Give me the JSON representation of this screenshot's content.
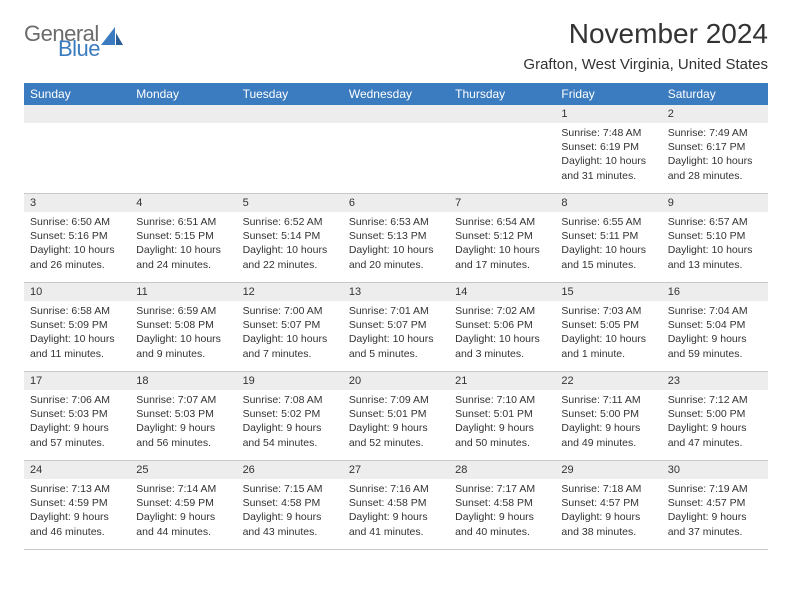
{
  "logo": {
    "text1": "General",
    "text2": "Blue"
  },
  "title": "November 2024",
  "location": "Grafton, West Virginia, United States",
  "header_color": "#3b7bbf",
  "daybar_color": "#ededed",
  "border_color": "#c8c8c8",
  "weekdays": [
    "Sunday",
    "Monday",
    "Tuesday",
    "Wednesday",
    "Thursday",
    "Friday",
    "Saturday"
  ],
  "weeks": [
    [
      null,
      null,
      null,
      null,
      null,
      {
        "n": "1",
        "sr": "7:48 AM",
        "ss": "6:19 PM",
        "dl": "10 hours and 31 minutes."
      },
      {
        "n": "2",
        "sr": "7:49 AM",
        "ss": "6:17 PM",
        "dl": "10 hours and 28 minutes."
      }
    ],
    [
      {
        "n": "3",
        "sr": "6:50 AM",
        "ss": "5:16 PM",
        "dl": "10 hours and 26 minutes."
      },
      {
        "n": "4",
        "sr": "6:51 AM",
        "ss": "5:15 PM",
        "dl": "10 hours and 24 minutes."
      },
      {
        "n": "5",
        "sr": "6:52 AM",
        "ss": "5:14 PM",
        "dl": "10 hours and 22 minutes."
      },
      {
        "n": "6",
        "sr": "6:53 AM",
        "ss": "5:13 PM",
        "dl": "10 hours and 20 minutes."
      },
      {
        "n": "7",
        "sr": "6:54 AM",
        "ss": "5:12 PM",
        "dl": "10 hours and 17 minutes."
      },
      {
        "n": "8",
        "sr": "6:55 AM",
        "ss": "5:11 PM",
        "dl": "10 hours and 15 minutes."
      },
      {
        "n": "9",
        "sr": "6:57 AM",
        "ss": "5:10 PM",
        "dl": "10 hours and 13 minutes."
      }
    ],
    [
      {
        "n": "10",
        "sr": "6:58 AM",
        "ss": "5:09 PM",
        "dl": "10 hours and 11 minutes."
      },
      {
        "n": "11",
        "sr": "6:59 AM",
        "ss": "5:08 PM",
        "dl": "10 hours and 9 minutes."
      },
      {
        "n": "12",
        "sr": "7:00 AM",
        "ss": "5:07 PM",
        "dl": "10 hours and 7 minutes."
      },
      {
        "n": "13",
        "sr": "7:01 AM",
        "ss": "5:07 PM",
        "dl": "10 hours and 5 minutes."
      },
      {
        "n": "14",
        "sr": "7:02 AM",
        "ss": "5:06 PM",
        "dl": "10 hours and 3 minutes."
      },
      {
        "n": "15",
        "sr": "7:03 AM",
        "ss": "5:05 PM",
        "dl": "10 hours and 1 minute."
      },
      {
        "n": "16",
        "sr": "7:04 AM",
        "ss": "5:04 PM",
        "dl": "9 hours and 59 minutes."
      }
    ],
    [
      {
        "n": "17",
        "sr": "7:06 AM",
        "ss": "5:03 PM",
        "dl": "9 hours and 57 minutes."
      },
      {
        "n": "18",
        "sr": "7:07 AM",
        "ss": "5:03 PM",
        "dl": "9 hours and 56 minutes."
      },
      {
        "n": "19",
        "sr": "7:08 AM",
        "ss": "5:02 PM",
        "dl": "9 hours and 54 minutes."
      },
      {
        "n": "20",
        "sr": "7:09 AM",
        "ss": "5:01 PM",
        "dl": "9 hours and 52 minutes."
      },
      {
        "n": "21",
        "sr": "7:10 AM",
        "ss": "5:01 PM",
        "dl": "9 hours and 50 minutes."
      },
      {
        "n": "22",
        "sr": "7:11 AM",
        "ss": "5:00 PM",
        "dl": "9 hours and 49 minutes."
      },
      {
        "n": "23",
        "sr": "7:12 AM",
        "ss": "5:00 PM",
        "dl": "9 hours and 47 minutes."
      }
    ],
    [
      {
        "n": "24",
        "sr": "7:13 AM",
        "ss": "4:59 PM",
        "dl": "9 hours and 46 minutes."
      },
      {
        "n": "25",
        "sr": "7:14 AM",
        "ss": "4:59 PM",
        "dl": "9 hours and 44 minutes."
      },
      {
        "n": "26",
        "sr": "7:15 AM",
        "ss": "4:58 PM",
        "dl": "9 hours and 43 minutes."
      },
      {
        "n": "27",
        "sr": "7:16 AM",
        "ss": "4:58 PM",
        "dl": "9 hours and 41 minutes."
      },
      {
        "n": "28",
        "sr": "7:17 AM",
        "ss": "4:58 PM",
        "dl": "9 hours and 40 minutes."
      },
      {
        "n": "29",
        "sr": "7:18 AM",
        "ss": "4:57 PM",
        "dl": "9 hours and 38 minutes."
      },
      {
        "n": "30",
        "sr": "7:19 AM",
        "ss": "4:57 PM",
        "dl": "9 hours and 37 minutes."
      }
    ]
  ],
  "labels": {
    "sunrise": "Sunrise: ",
    "sunset": "Sunset: ",
    "daylight": "Daylight: "
  }
}
